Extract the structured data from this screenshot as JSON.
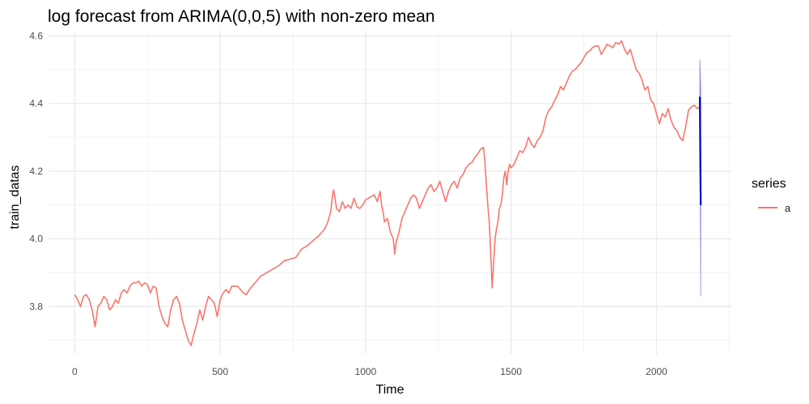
{
  "chart_data": {
    "type": "line",
    "title": "log forecast from ARIMA(0,0,5) with non-zero mean",
    "xlabel": "Time",
    "ylabel": "train_datas",
    "xlim": [
      -90,
      2260
    ],
    "ylim": [
      3.66,
      4.615
    ],
    "x_ticks": [
      0,
      500,
      1000,
      1500,
      2000
    ],
    "x_tick_labels": [
      "0",
      "500",
      "1000",
      "1500",
      "2000"
    ],
    "y_ticks": [
      3.8,
      4.0,
      4.2,
      4.4,
      4.6
    ],
    "y_tick_labels": [
      "3.8",
      "4.0",
      "4.2",
      "4.4",
      "4.6"
    ],
    "grid": true,
    "legend": {
      "title": "series",
      "placement": "right",
      "entries": [
        {
          "label": "a",
          "color": "#F8766D"
        }
      ]
    },
    "series": [
      {
        "name": "a",
        "color": "#F8766D",
        "points": [
          [
            0,
            3.835
          ],
          [
            10,
            3.82
          ],
          [
            20,
            3.8
          ],
          [
            30,
            3.83
          ],
          [
            40,
            3.835
          ],
          [
            50,
            3.82
          ],
          [
            60,
            3.79
          ],
          [
            70,
            3.74
          ],
          [
            80,
            3.8
          ],
          [
            90,
            3.81
          ],
          [
            100,
            3.83
          ],
          [
            110,
            3.82
          ],
          [
            120,
            3.79
          ],
          [
            130,
            3.8
          ],
          [
            140,
            3.82
          ],
          [
            150,
            3.81
          ],
          [
            160,
            3.84
          ],
          [
            170,
            3.85
          ],
          [
            180,
            3.84
          ],
          [
            190,
            3.86
          ],
          [
            200,
            3.87
          ],
          [
            210,
            3.87
          ],
          [
            220,
            3.875
          ],
          [
            230,
            3.86
          ],
          [
            240,
            3.87
          ],
          [
            250,
            3.865
          ],
          [
            260,
            3.84
          ],
          [
            270,
            3.86
          ],
          [
            280,
            3.855
          ],
          [
            290,
            3.8
          ],
          [
            300,
            3.77
          ],
          [
            310,
            3.75
          ],
          [
            320,
            3.74
          ],
          [
            330,
            3.79
          ],
          [
            340,
            3.82
          ],
          [
            350,
            3.83
          ],
          [
            360,
            3.81
          ],
          [
            370,
            3.76
          ],
          [
            380,
            3.73
          ],
          [
            390,
            3.7
          ],
          [
            400,
            3.685
          ],
          [
            410,
            3.72
          ],
          [
            420,
            3.75
          ],
          [
            430,
            3.79
          ],
          [
            440,
            3.76
          ],
          [
            450,
            3.8
          ],
          [
            460,
            3.83
          ],
          [
            470,
            3.82
          ],
          [
            480,
            3.81
          ],
          [
            490,
            3.77
          ],
          [
            500,
            3.82
          ],
          [
            510,
            3.84
          ],
          [
            520,
            3.85
          ],
          [
            530,
            3.84
          ],
          [
            540,
            3.86
          ],
          [
            560,
            3.86
          ],
          [
            580,
            3.84
          ],
          [
            590,
            3.835
          ],
          [
            600,
            3.85
          ],
          [
            620,
            3.87
          ],
          [
            640,
            3.89
          ],
          [
            660,
            3.9
          ],
          [
            680,
            3.91
          ],
          [
            700,
            3.92
          ],
          [
            720,
            3.935
          ],
          [
            740,
            3.94
          ],
          [
            760,
            3.945
          ],
          [
            780,
            3.97
          ],
          [
            800,
            3.98
          ],
          [
            820,
            3.995
          ],
          [
            840,
            4.01
          ],
          [
            860,
            4.03
          ],
          [
            870,
            4.05
          ],
          [
            880,
            4.08
          ],
          [
            885,
            4.12
          ],
          [
            890,
            4.145
          ],
          [
            895,
            4.12
          ],
          [
            900,
            4.09
          ],
          [
            910,
            4.08
          ],
          [
            920,
            4.11
          ],
          [
            930,
            4.09
          ],
          [
            940,
            4.1
          ],
          [
            950,
            4.09
          ],
          [
            960,
            4.12
          ],
          [
            970,
            4.095
          ],
          [
            980,
            4.09
          ],
          [
            990,
            4.1
          ],
          [
            1000,
            4.115
          ],
          [
            1010,
            4.12
          ],
          [
            1020,
            4.125
          ],
          [
            1030,
            4.13
          ],
          [
            1040,
            4.11
          ],
          [
            1050,
            4.14
          ],
          [
            1055,
            4.1
          ],
          [
            1060,
            4.08
          ],
          [
            1065,
            4.05
          ],
          [
            1075,
            4.06
          ],
          [
            1085,
            4.02
          ],
          [
            1095,
            4.0
          ],
          [
            1100,
            3.955
          ],
          [
            1105,
            3.99
          ],
          [
            1115,
            4.02
          ],
          [
            1125,
            4.06
          ],
          [
            1135,
            4.08
          ],
          [
            1145,
            4.1
          ],
          [
            1155,
            4.12
          ],
          [
            1165,
            4.13
          ],
          [
            1175,
            4.12
          ],
          [
            1185,
            4.09
          ],
          [
            1195,
            4.11
          ],
          [
            1205,
            4.13
          ],
          [
            1215,
            4.15
          ],
          [
            1225,
            4.16
          ],
          [
            1235,
            4.14
          ],
          [
            1245,
            4.15
          ],
          [
            1255,
            4.17
          ],
          [
            1265,
            4.14
          ],
          [
            1275,
            4.11
          ],
          [
            1285,
            4.14
          ],
          [
            1295,
            4.16
          ],
          [
            1305,
            4.17
          ],
          [
            1315,
            4.15
          ],
          [
            1325,
            4.18
          ],
          [
            1335,
            4.19
          ],
          [
            1345,
            4.21
          ],
          [
            1355,
            4.22
          ],
          [
            1365,
            4.225
          ],
          [
            1375,
            4.24
          ],
          [
            1385,
            4.25
          ],
          [
            1395,
            4.265
          ],
          [
            1405,
            4.27
          ],
          [
            1410,
            4.23
          ],
          [
            1415,
            4.16
          ],
          [
            1420,
            4.1
          ],
          [
            1425,
            4.05
          ],
          [
            1430,
            3.96
          ],
          [
            1435,
            3.855
          ],
          [
            1440,
            3.93
          ],
          [
            1445,
            4.0
          ],
          [
            1450,
            4.03
          ],
          [
            1455,
            4.05
          ],
          [
            1460,
            4.09
          ],
          [
            1465,
            4.1
          ],
          [
            1470,
            4.13
          ],
          [
            1475,
            4.18
          ],
          [
            1480,
            4.2
          ],
          [
            1485,
            4.16
          ],
          [
            1490,
            4.2
          ],
          [
            1495,
            4.22
          ],
          [
            1500,
            4.21
          ],
          [
            1510,
            4.22
          ],
          [
            1520,
            4.24
          ],
          [
            1530,
            4.26
          ],
          [
            1540,
            4.255
          ],
          [
            1550,
            4.27
          ],
          [
            1560,
            4.3
          ],
          [
            1570,
            4.28
          ],
          [
            1580,
            4.27
          ],
          [
            1590,
            4.29
          ],
          [
            1600,
            4.3
          ],
          [
            1610,
            4.32
          ],
          [
            1620,
            4.36
          ],
          [
            1630,
            4.38
          ],
          [
            1640,
            4.39
          ],
          [
            1650,
            4.41
          ],
          [
            1660,
            4.425
          ],
          [
            1670,
            4.45
          ],
          [
            1680,
            4.44
          ],
          [
            1690,
            4.46
          ],
          [
            1700,
            4.48
          ],
          [
            1710,
            4.495
          ],
          [
            1720,
            4.5
          ],
          [
            1730,
            4.51
          ],
          [
            1740,
            4.52
          ],
          [
            1750,
            4.535
          ],
          [
            1760,
            4.55
          ],
          [
            1770,
            4.555
          ],
          [
            1780,
            4.565
          ],
          [
            1790,
            4.57
          ],
          [
            1800,
            4.57
          ],
          [
            1810,
            4.545
          ],
          [
            1820,
            4.56
          ],
          [
            1830,
            4.575
          ],
          [
            1840,
            4.57
          ],
          [
            1850,
            4.565
          ],
          [
            1860,
            4.58
          ],
          [
            1870,
            4.575
          ],
          [
            1880,
            4.585
          ],
          [
            1890,
            4.56
          ],
          [
            1900,
            4.545
          ],
          [
            1910,
            4.56
          ],
          [
            1920,
            4.53
          ],
          [
            1930,
            4.5
          ],
          [
            1940,
            4.49
          ],
          [
            1950,
            4.47
          ],
          [
            1960,
            4.44
          ],
          [
            1970,
            4.45
          ],
          [
            1980,
            4.41
          ],
          [
            1990,
            4.4
          ],
          [
            2000,
            4.37
          ],
          [
            2010,
            4.34
          ],
          [
            2020,
            4.37
          ],
          [
            2030,
            4.36
          ],
          [
            2040,
            4.385
          ],
          [
            2050,
            4.35
          ],
          [
            2060,
            4.33
          ],
          [
            2070,
            4.32
          ],
          [
            2080,
            4.3
          ],
          [
            2090,
            4.29
          ],
          [
            2100,
            4.33
          ],
          [
            2110,
            4.38
          ],
          [
            2120,
            4.39
          ],
          [
            2130,
            4.395
          ],
          [
            2140,
            4.385
          ],
          [
            2148,
            4.39
          ]
        ]
      }
    ],
    "forecast": {
      "color": "#0000CC",
      "mean": [
        [
          2149,
          4.42
        ],
        [
          2150,
          4.3
        ],
        [
          2152,
          4.1
        ]
      ],
      "upper": [
        [
          2149,
          4.53
        ],
        [
          2152,
          4.44
        ]
      ],
      "lower": [
        [
          2149,
          4.32
        ],
        [
          2152,
          3.83
        ]
      ],
      "band_color": "#4040E0"
    }
  }
}
